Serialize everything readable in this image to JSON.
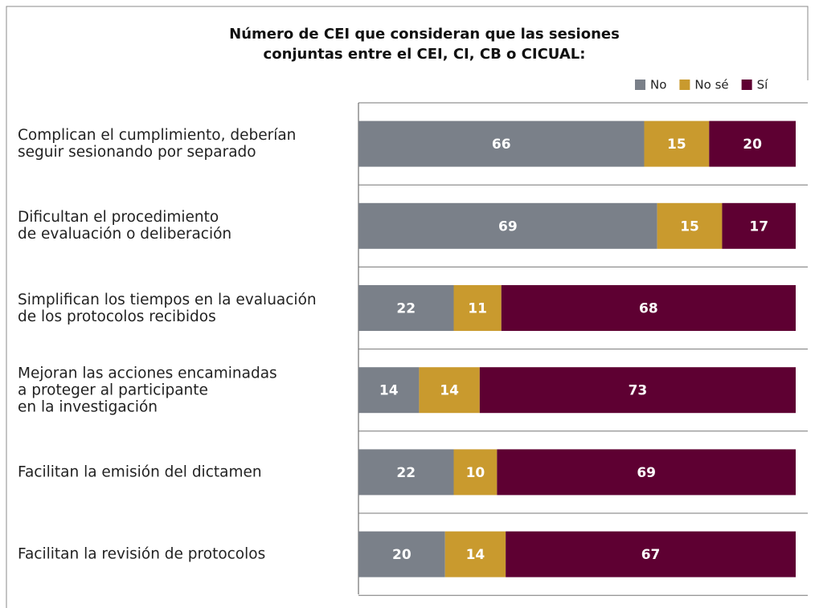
{
  "chart_data": {
    "type": "stacked_bar_horizontal",
    "title": "Número de CEI que consideran que las sesiones\nconjuntas entre el CEI, CI, CB o CICUAL:",
    "categories": [
      "Complican el cumplimiento, deberían\nseguir sesionando por separado",
      "Dificultan el procedimiento\nde evaluación o deliberación",
      "Simplifican los tiempos en la evaluación\nde los protocolos recibidos",
      "Mejoran las acciones encaminadas\na proteger al participante\nen la investigación",
      "Facilitan la emisión del dictamen",
      "Facilitan la revisión de protocolos"
    ],
    "series": [
      {
        "name": "No",
        "color": "#7a8089",
        "values": [
          66,
          69,
          22,
          14,
          22,
          20
        ]
      },
      {
        "name": "No sé",
        "color": "#c99a2e",
        "values": [
          15,
          15,
          11,
          14,
          10,
          14
        ]
      },
      {
        "name": "Sí",
        "color": "#5e0032",
        "values": [
          20,
          17,
          68,
          73,
          69,
          67
        ]
      }
    ],
    "legend": "top-right"
  }
}
